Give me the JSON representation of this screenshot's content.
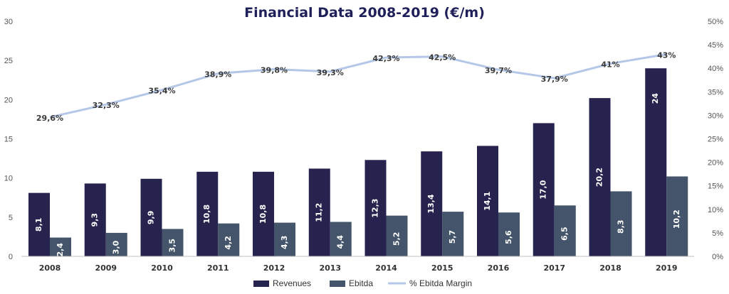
{
  "chart_data": {
    "type": "bar",
    "title": "Financial Data 2008-2019 (€/m)",
    "categories": [
      "2008",
      "2009",
      "2010",
      "2011",
      "2012",
      "2013",
      "2014",
      "2015",
      "2016",
      "2017",
      "2018",
      "2019"
    ],
    "series": [
      {
        "name": "Revenues",
        "kind": "bar",
        "axis": "left",
        "color": "#27234f",
        "values": [
          8.1,
          9.3,
          9.9,
          10.8,
          10.8,
          11.2,
          12.3,
          13.4,
          14.1,
          17.0,
          20.2,
          24
        ],
        "labels": [
          "8,1",
          "9,3",
          "9,9",
          "10,8",
          "10,8",
          "11,2",
          "12,3",
          "13,4",
          "14,1",
          "17,0",
          "20,2",
          "24"
        ]
      },
      {
        "name": "Ebitda",
        "kind": "bar",
        "axis": "left",
        "color": "#44546a",
        "values": [
          2.4,
          3.0,
          3.5,
          4.2,
          4.3,
          4.4,
          5.2,
          5.7,
          5.6,
          6.5,
          8.3,
          10.2
        ],
        "labels": [
          "2,4",
          "3,0",
          "3,5",
          "4,2",
          "4,3",
          "4,4",
          "5,2",
          "5,7",
          "5,6",
          "6,5",
          "8,3",
          "10,2"
        ]
      },
      {
        "name": "% Ebitda Margin",
        "kind": "line",
        "axis": "right",
        "color": "#b4c7e7",
        "values": [
          29.6,
          32.3,
          35.4,
          38.9,
          39.8,
          39.3,
          42.3,
          42.5,
          39.7,
          37.9,
          41,
          43
        ],
        "labels": [
          "29,6%",
          "32,3%",
          "35,4%",
          "38,9%",
          "39,8%",
          "39,3%",
          "42,3%",
          "42,5%",
          "39,7%",
          "37,9%",
          "41%",
          "43%"
        ]
      }
    ],
    "y_left": {
      "min": 0,
      "max": 30,
      "ticks": [
        0,
        5,
        10,
        15,
        20,
        25,
        30
      ],
      "tick_labels": [
        "0",
        "5",
        "10",
        "15",
        "20",
        "25",
        "30"
      ]
    },
    "y_right": {
      "min": 0,
      "max": 50,
      "ticks": [
        0,
        5,
        10,
        15,
        20,
        25,
        30,
        35,
        40,
        45,
        50
      ],
      "tick_labels": [
        "0%",
        "5%",
        "10%",
        "15%",
        "20%",
        "25%",
        "30%",
        "35%",
        "40%",
        "45%",
        "50%"
      ]
    },
    "grid": false,
    "legend": {
      "position": "bottom",
      "items": [
        "Revenues",
        "Ebitda",
        "% Ebitda Margin"
      ]
    }
  }
}
